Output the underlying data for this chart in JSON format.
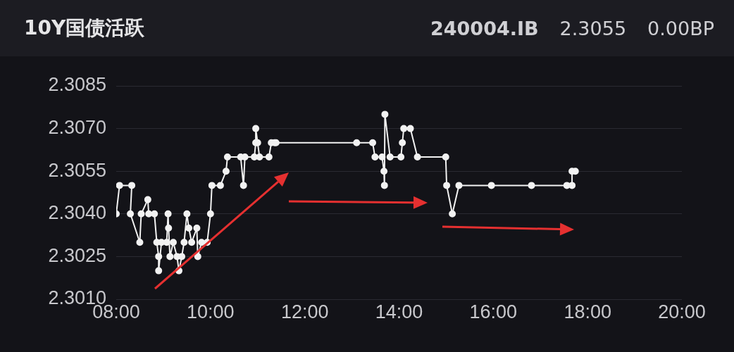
{
  "chart_data": {
    "type": "line",
    "title": "10Y国债活跃",
    "annotations": [
      "240004.IB",
      "2.3055",
      "0.00BP"
    ],
    "series": [
      {
        "color": "#f2f2f2",
        "x": [
          8.0,
          8.07,
          8.33,
          8.3,
          8.5,
          8.53,
          8.67,
          8.69,
          8.81,
          8.86,
          8.9,
          8.9,
          8.96,
          9.07,
          9.1,
          9.11,
          9.14,
          9.21,
          9.29,
          9.33,
          9.39,
          9.44,
          9.5,
          9.54,
          9.6,
          9.71,
          9.73,
          9.81,
          9.93,
          10.0,
          10.03,
          10.21,
          10.33,
          10.36,
          10.64,
          10.7,
          10.73,
          10.93,
          10.96,
          10.96,
          11.0,
          11.04,
          11.24,
          11.29,
          11.36,
          11.39,
          13.1,
          13.44,
          13.49,
          13.64,
          13.68,
          13.69,
          13.7,
          13.81,
          14.04,
          14.07,
          14.1,
          14.24,
          14.39,
          14.99,
          15.01,
          15.13,
          15.27,
          15.96,
          16.81,
          17.56,
          17.67,
          17.67,
          17.74
        ],
        "values": [
          2.304,
          2.305,
          2.305,
          2.304,
          2.303,
          2.304,
          2.3045,
          2.304,
          2.304,
          2.303,
          2.3025,
          2.302,
          2.303,
          2.303,
          2.304,
          2.3035,
          2.3025,
          2.303,
          2.3025,
          2.302,
          2.3025,
          2.303,
          2.304,
          2.3035,
          2.303,
          2.3035,
          2.3025,
          2.303,
          2.303,
          2.304,
          2.305,
          2.305,
          2.3055,
          2.306,
          2.306,
          2.305,
          2.306,
          2.306,
          2.3065,
          2.307,
          2.3065,
          2.306,
          2.306,
          2.3065,
          2.3065,
          2.3065,
          2.3065,
          2.3065,
          2.306,
          2.306,
          2.3055,
          2.305,
          2.3075,
          2.306,
          2.306,
          2.3065,
          2.307,
          2.307,
          2.306,
          2.306,
          2.305,
          2.304,
          2.305,
          2.305,
          2.305,
          2.305,
          2.305,
          2.3055,
          2.3055
        ]
      }
    ],
    "xlim": [
      8,
      20
    ],
    "xticks": [
      {
        "value": 8,
        "label": "08:00"
      },
      {
        "value": 10,
        "label": "10:00"
      },
      {
        "value": 12,
        "label": "12:00"
      },
      {
        "value": 14,
        "label": "14:00"
      },
      {
        "value": 16,
        "label": "16:00"
      },
      {
        "value": 18,
        "label": "18:00"
      },
      {
        "value": 20,
        "label": "20:00"
      }
    ],
    "ylim": [
      2.301,
      2.3085
    ],
    "yticks": [
      2.3085,
      {
        "value": 2.307,
        "label": "2.3070"
      },
      2.3055,
      {
        "value": 2.304,
        "label": "2.3040"
      },
      2.3025,
      {
        "value": 2.301,
        "label": "2.3010"
      }
    ],
    "grid": "y",
    "marker": "circle",
    "line_style": "solid"
  }
}
